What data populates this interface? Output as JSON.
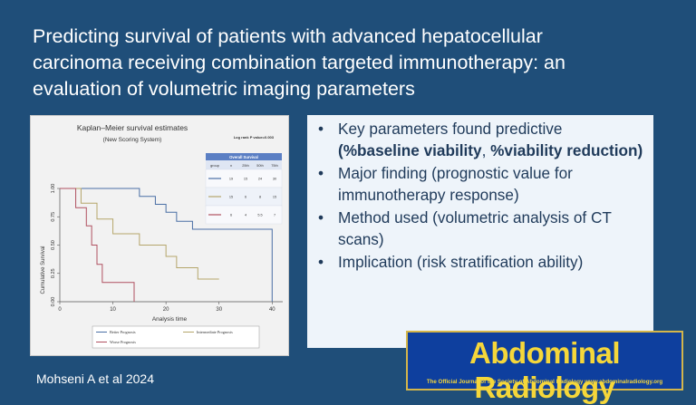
{
  "title": "Predicting survival of patients with advanced hepatocellular\ncarcinoma receiving combination targeted immunotherapy: an\nevaluation of volumetric imaging parameters",
  "bullets": [
    {
      "parts": [
        {
          "t": "Key parameters found predictive "
        },
        {
          "t": "(%baseline viability",
          "b": true
        },
        {
          "t": ", "
        },
        {
          "t": "%viability reduction)",
          "b": true
        }
      ]
    },
    {
      "parts": [
        {
          "t": "Major finding (prognostic value for immunotherapy response)"
        }
      ]
    },
    {
      "parts": [
        {
          "t": "Method used (volumetric analysis of CT scans)"
        }
      ]
    },
    {
      "parts": [
        {
          "t": "Implication (risk stratification ability)"
        }
      ]
    }
  ],
  "bullet_glyph": "•",
  "logo": {
    "name": "Abdominal Radiology",
    "tagline": "The Official Journal of the Society of Abdominal Radiology  www.abdominalradiology.org"
  },
  "credit": "Mohseni A et al 2024",
  "chart_data": {
    "type": "line",
    "title": "Kaplan–Meier survival estimates",
    "subtitle": "(New Scoring System)",
    "annotation": "Log rank P value=0.003",
    "xlabel": "Analysis time",
    "ylabel": "Cumulative Survival",
    "xlim": [
      0,
      42
    ],
    "ylim": [
      0,
      1
    ],
    "x_ticks": [
      0,
      10,
      20,
      30,
      40
    ],
    "y_ticks": [
      0.0,
      0.25,
      0.5,
      0.75,
      1.0
    ],
    "y_tick_labels": [
      "0.00",
      "0.25",
      "0.50",
      "0.75",
      "1.00"
    ],
    "series": [
      {
        "name": "Better Prognosis",
        "color": "#4a6fa5",
        "steps": [
          [
            0,
            1.0
          ],
          [
            15,
            0.93
          ],
          [
            18,
            0.86
          ],
          [
            20,
            0.79
          ],
          [
            22,
            0.71
          ],
          [
            25,
            0.64
          ],
          [
            40,
            0.64
          ],
          [
            40,
            0.0
          ]
        ]
      },
      {
        "name": "Intermediate Prognosis",
        "color": "#b5a66b",
        "steps": [
          [
            0,
            1.0
          ],
          [
            4,
            0.87
          ],
          [
            7,
            0.73
          ],
          [
            10,
            0.6
          ],
          [
            15,
            0.5
          ],
          [
            20,
            0.4
          ],
          [
            22,
            0.3
          ],
          [
            26,
            0.2
          ],
          [
            30,
            0.2
          ]
        ]
      },
      {
        "name": "Worse Prognosis",
        "color": "#b05060",
        "steps": [
          [
            0,
            1.0
          ],
          [
            3,
            0.83
          ],
          [
            5,
            0.67
          ],
          [
            6,
            0.5
          ],
          [
            7,
            0.33
          ],
          [
            8,
            0.17
          ],
          [
            14,
            0.17
          ],
          [
            14,
            0.0
          ]
        ]
      }
    ],
    "legend_position": "bottom",
    "table": {
      "header_title": "Overall Survival",
      "columns": [
        "group",
        "n",
        "25th",
        "50th",
        "75th"
      ],
      "rows": [
        {
          "color": "#4a6fa5",
          "cells": [
            "",
            "19",
            "15",
            "24",
            "30"
          ]
        },
        {
          "color": "#b5a66b",
          "cells": [
            "",
            "15",
            "6",
            "8",
            "15"
          ]
        },
        {
          "color": "#b05060",
          "cells": [
            "",
            "6",
            "4",
            "5.5",
            "7"
          ]
        }
      ]
    }
  }
}
